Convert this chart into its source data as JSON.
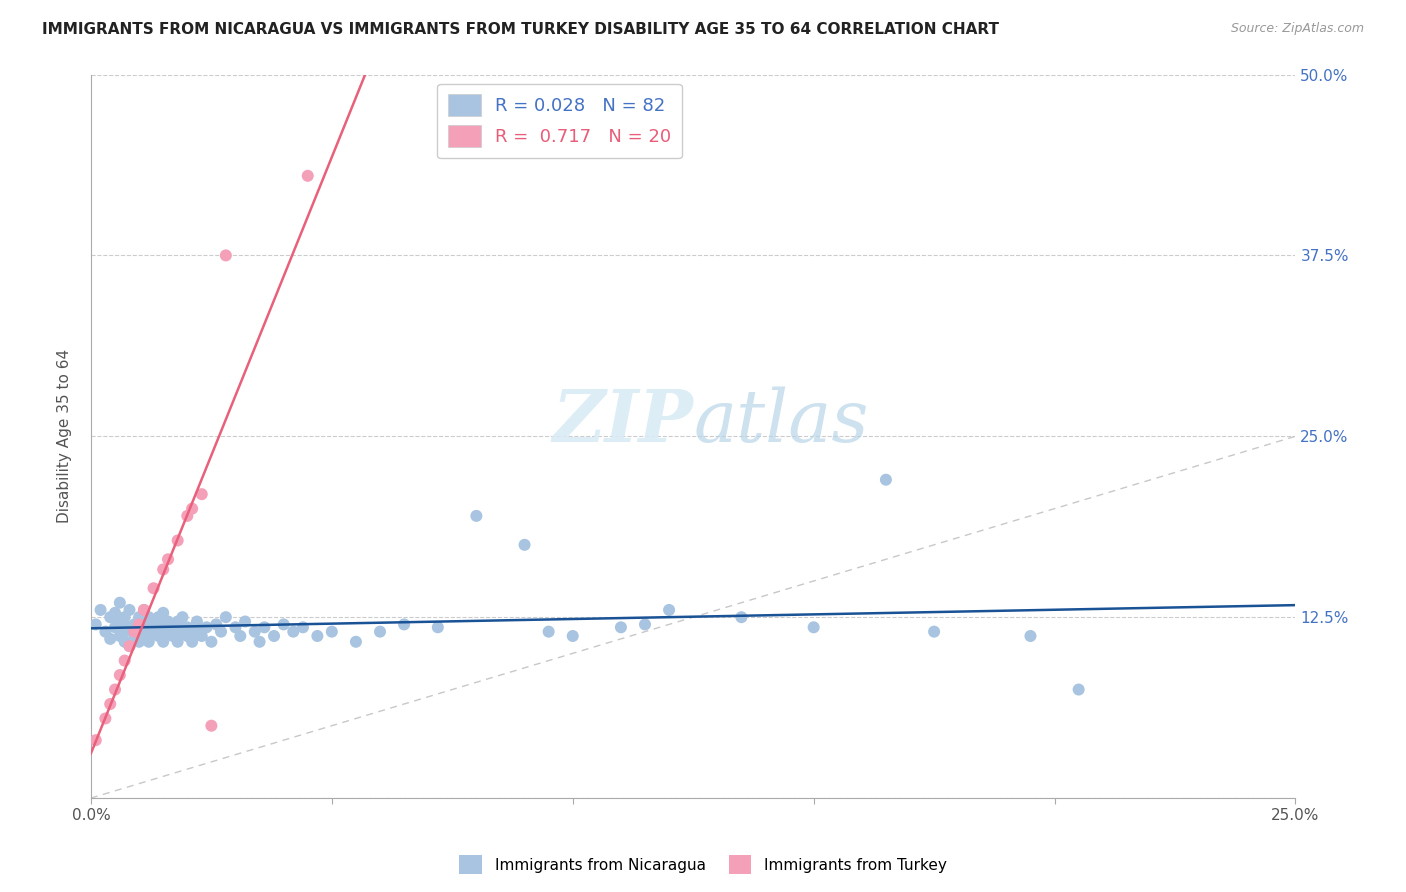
{
  "title": "IMMIGRANTS FROM NICARAGUA VS IMMIGRANTS FROM TURKEY DISABILITY AGE 35 TO 64 CORRELATION CHART",
  "source": "Source: ZipAtlas.com",
  "ylabel": "Disability Age 35 to 64",
  "xlim": [
    0.0,
    0.25
  ],
  "ylim": [
    0.0,
    0.5
  ],
  "xtick_positions": [
    0.0,
    0.05,
    0.1,
    0.15,
    0.2,
    0.25
  ],
  "xtick_labels": [
    "0.0%",
    "",
    "",
    "",
    "",
    "25.0%"
  ],
  "ytick_positions": [
    0.0,
    0.125,
    0.25,
    0.375,
    0.5
  ],
  "ytick_labels_right": [
    "",
    "12.5%",
    "25.0%",
    "37.5%",
    "50.0%"
  ],
  "nicaragua_R": 0.028,
  "nicaragua_N": 82,
  "turkey_R": 0.717,
  "turkey_N": 20,
  "nicaragua_color": "#a8c4e0",
  "turkey_color": "#f4a0b8",
  "nicaragua_line_color": "#1a5296",
  "turkey_line_color": "#e8607a",
  "diagonal_color": "#c8c8c8",
  "nicaragua_x": [
    0.001,
    0.002,
    0.003,
    0.004,
    0.004,
    0.005,
    0.005,
    0.006,
    0.006,
    0.006,
    0.007,
    0.007,
    0.007,
    0.008,
    0.008,
    0.008,
    0.009,
    0.009,
    0.01,
    0.01,
    0.01,
    0.011,
    0.011,
    0.011,
    0.012,
    0.012,
    0.012,
    0.013,
    0.013,
    0.014,
    0.014,
    0.015,
    0.015,
    0.015,
    0.016,
    0.016,
    0.017,
    0.017,
    0.018,
    0.018,
    0.019,
    0.019,
    0.02,
    0.02,
    0.021,
    0.022,
    0.022,
    0.023,
    0.024,
    0.025,
    0.026,
    0.027,
    0.028,
    0.03,
    0.031,
    0.032,
    0.034,
    0.035,
    0.036,
    0.038,
    0.04,
    0.042,
    0.044,
    0.047,
    0.05,
    0.055,
    0.06,
    0.065,
    0.072,
    0.08,
    0.09,
    0.095,
    0.1,
    0.11,
    0.115,
    0.12,
    0.135,
    0.15,
    0.165,
    0.175,
    0.195,
    0.205
  ],
  "nicaragua_y": [
    0.12,
    0.13,
    0.115,
    0.125,
    0.11,
    0.128,
    0.118,
    0.122,
    0.112,
    0.135,
    0.115,
    0.125,
    0.108,
    0.118,
    0.13,
    0.105,
    0.12,
    0.112,
    0.125,
    0.115,
    0.108,
    0.122,
    0.13,
    0.112,
    0.118,
    0.125,
    0.108,
    0.115,
    0.12,
    0.112,
    0.125,
    0.118,
    0.108,
    0.128,
    0.115,
    0.122,
    0.112,
    0.118,
    0.108,
    0.122,
    0.115,
    0.125,
    0.112,
    0.118,
    0.108,
    0.122,
    0.115,
    0.112,
    0.118,
    0.108,
    0.12,
    0.115,
    0.125,
    0.118,
    0.112,
    0.122,
    0.115,
    0.108,
    0.118,
    0.112,
    0.12,
    0.115,
    0.118,
    0.112,
    0.115,
    0.108,
    0.115,
    0.12,
    0.118,
    0.195,
    0.175,
    0.115,
    0.112,
    0.118,
    0.12,
    0.13,
    0.125,
    0.118,
    0.22,
    0.115,
    0.112,
    0.075
  ],
  "turkey_x": [
    0.001,
    0.003,
    0.004,
    0.005,
    0.006,
    0.007,
    0.008,
    0.009,
    0.01,
    0.011,
    0.013,
    0.015,
    0.016,
    0.018,
    0.02,
    0.021,
    0.023,
    0.025,
    0.028,
    0.045
  ],
  "turkey_y": [
    0.04,
    0.055,
    0.065,
    0.075,
    0.085,
    0.095,
    0.105,
    0.115,
    0.12,
    0.13,
    0.145,
    0.158,
    0.165,
    0.178,
    0.195,
    0.2,
    0.21,
    0.05,
    0.375,
    0.43
  ]
}
